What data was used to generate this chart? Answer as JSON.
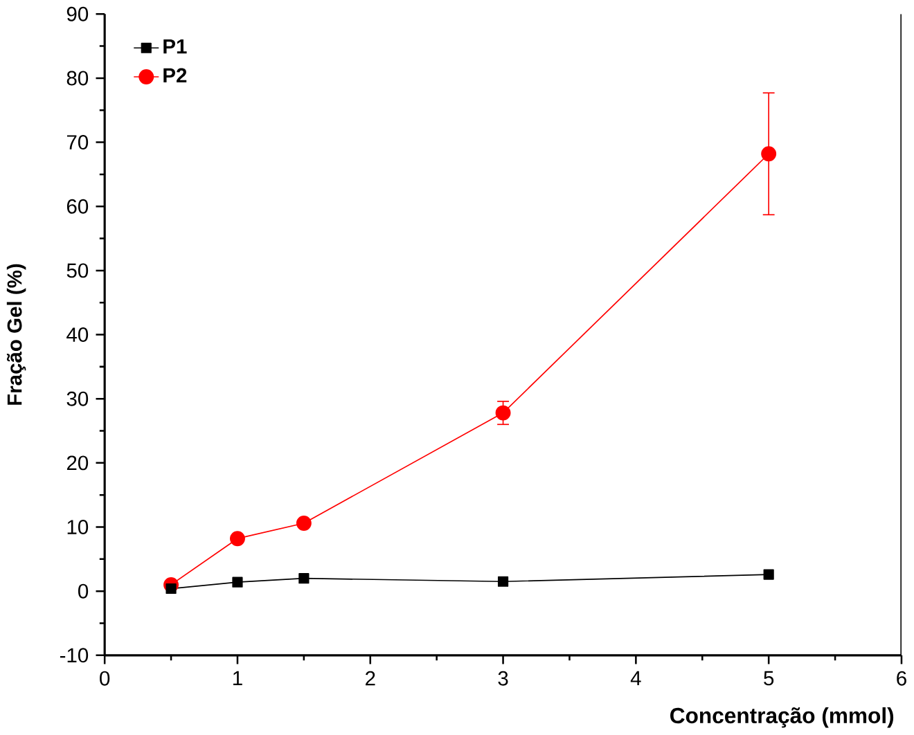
{
  "chart_data": {
    "type": "line",
    "xlabel": "Concentração  (mmol)",
    "ylabel": "Fração Gel  (%)",
    "x": [
      0.5,
      1,
      1.5,
      3,
      5
    ],
    "series": [
      {
        "name": "P1",
        "color": "#000000",
        "marker": "square",
        "values": [
          0.4,
          1.4,
          2.0,
          1.5,
          2.6
        ]
      },
      {
        "name": "P2",
        "color": "#ff0000",
        "marker": "circle",
        "values": [
          1.0,
          8.2,
          10.6,
          27.8,
          68.2
        ],
        "errors": [
          null,
          null,
          null,
          1.8,
          9.5
        ]
      }
    ],
    "xlim": [
      0,
      6
    ],
    "xticks": [
      0,
      1,
      2,
      3,
      4,
      5,
      6
    ],
    "ylim": [
      -10,
      90
    ],
    "yticks": [
      -10,
      0,
      10,
      20,
      30,
      40,
      50,
      60,
      70,
      80,
      90
    ],
    "grid": false,
    "legend": "top left",
    "line_style": "solid"
  }
}
